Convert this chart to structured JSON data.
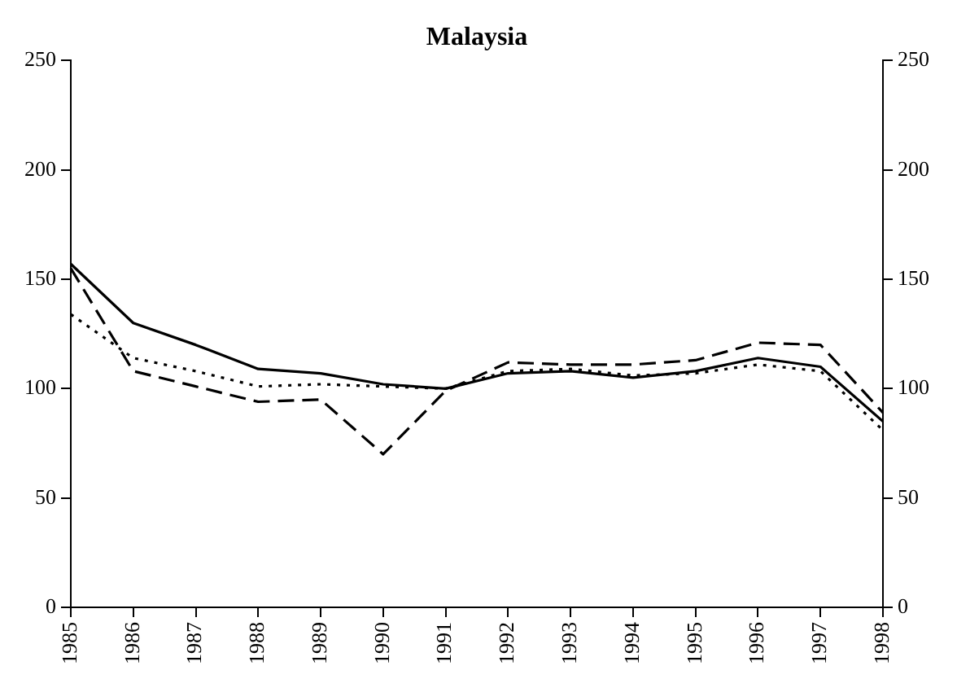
{
  "chart_data": {
    "type": "line",
    "title": "Malaysia",
    "categories": [
      "1985",
      "1986",
      "1987",
      "1988",
      "1989",
      "1990",
      "1991",
      "1992",
      "1993",
      "1994",
      "1995",
      "1996",
      "1997",
      "1998"
    ],
    "series": [
      {
        "color": "#000000",
        "line_style": "solid",
        "values": [
          157,
          130,
          120,
          109,
          107,
          102,
          100,
          107,
          108,
          105,
          108,
          114,
          110,
          85
        ]
      },
      {
        "color": "#000000",
        "line_style": "dashed",
        "values": [
          155,
          108,
          101,
          94,
          95,
          70,
          99,
          112,
          111,
          111,
          113,
          121,
          120,
          89
        ]
      },
      {
        "color": "#000000",
        "line_style": "dotted",
        "values": [
          134,
          114,
          108,
          101,
          102,
          101,
          100,
          108,
          109,
          106,
          107,
          111,
          108,
          81
        ]
      }
    ],
    "ylim": [
      0,
      250
    ],
    "yticks": [
      0,
      50,
      100,
      150,
      200,
      250
    ],
    "y2lim": [
      0,
      250
    ],
    "y2ticks": [
      0,
      50,
      100,
      150,
      200,
      250
    ],
    "grid": false,
    "legend": false,
    "marker": "none"
  }
}
